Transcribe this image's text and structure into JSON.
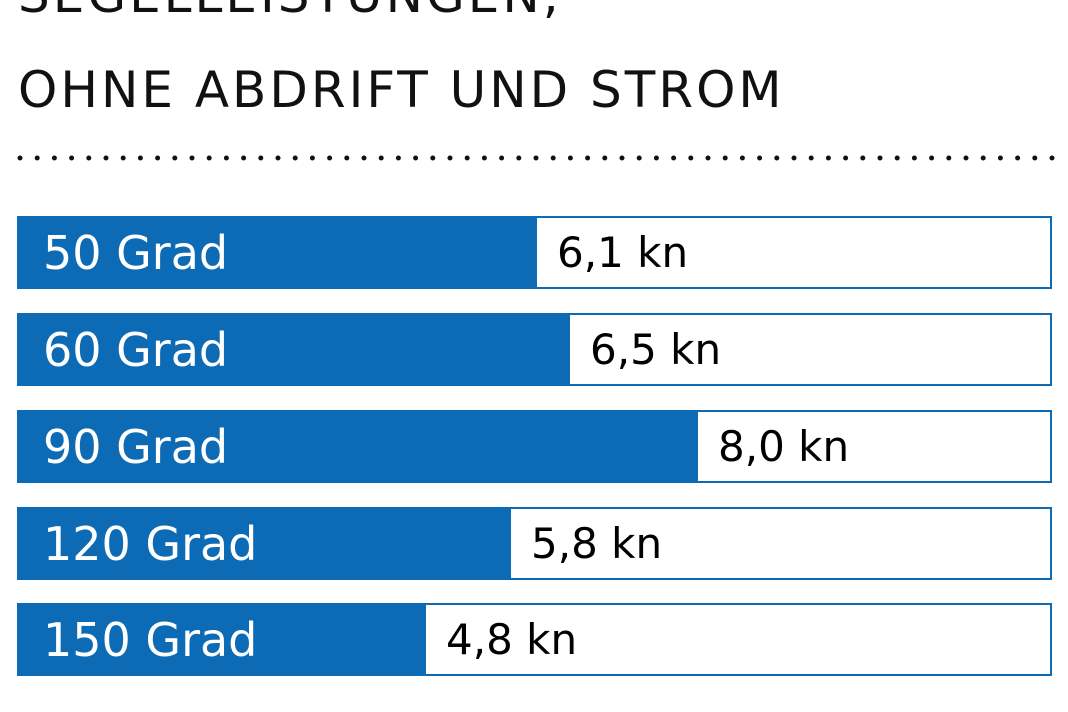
{
  "header": {
    "title_partial": "SEGELLEISTUNGEN,",
    "title": "OHNE ABDRIFT UND STROM"
  },
  "colors": {
    "accent": "#0d6bb5"
  },
  "chart_data": {
    "type": "bar",
    "orientation": "horizontal",
    "title": "SEGELLEISTUNGEN, OHNE ABDRIFT UND STROM",
    "categories": [
      "50 Grad",
      "60 Grad",
      "90 Grad",
      "120 Grad",
      "150 Grad"
    ],
    "values": [
      6.1,
      6.5,
      8.0,
      5.8,
      4.8
    ],
    "value_labels": [
      "6,1 kn",
      "6,5 kn",
      "8,0 kn",
      "5,8 kn",
      "4,8 kn"
    ],
    "xlim": [
      0,
      12.2
    ],
    "grid": false,
    "legend": "none"
  }
}
